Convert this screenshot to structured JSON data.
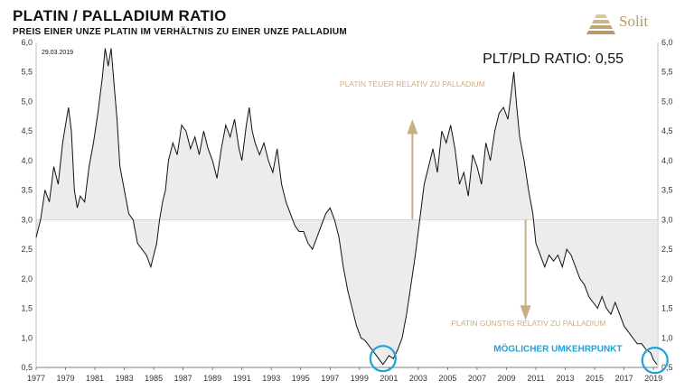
{
  "header": {
    "title": "PLATIN / PALLADIUM RATIO",
    "subtitle": "PREIS EINER UNZE PLATIN IM VERHÄLTNIS ZU EINER UNZE PALLADIUM",
    "brand": "Solit",
    "brand_color": "#b59a6a"
  },
  "chart_data": {
    "type": "line",
    "date_label": "29.03.2019",
    "ratio_label": "PLT/PLD RATIO: 0,55",
    "ylim": [
      0.5,
      6.0
    ],
    "xlim": [
      1977,
      2019.3
    ],
    "reference_level": 3.0,
    "y_ticks": [
      "0,5",
      "1,0",
      "1,5",
      "2,0",
      "2,5",
      "3,0",
      "3,5",
      "4,0",
      "4,5",
      "5,0",
      "5,5",
      "6,0"
    ],
    "x_ticks": [
      "1977",
      "1979",
      "1981",
      "1983",
      "1985",
      "1987",
      "1989",
      "1991",
      "1993",
      "1995",
      "1997",
      "1999",
      "2001",
      "2003",
      "2005",
      "2007",
      "2009",
      "2011",
      "2013",
      "2015",
      "2017",
      "2019"
    ],
    "series": [
      {
        "line_color": "#111111",
        "fill_color": "#ececec",
        "points": [
          [
            1977.0,
            2.7
          ],
          [
            1977.3,
            3.0
          ],
          [
            1977.6,
            3.5
          ],
          [
            1977.9,
            3.3
          ],
          [
            1978.2,
            3.9
          ],
          [
            1978.5,
            3.6
          ],
          [
            1978.8,
            4.3
          ],
          [
            1979.0,
            4.6
          ],
          [
            1979.2,
            4.9
          ],
          [
            1979.4,
            4.5
          ],
          [
            1979.6,
            3.5
          ],
          [
            1979.8,
            3.2
          ],
          [
            1980.0,
            3.4
          ],
          [
            1980.3,
            3.3
          ],
          [
            1980.6,
            3.9
          ],
          [
            1980.9,
            4.3
          ],
          [
            1981.2,
            4.8
          ],
          [
            1981.5,
            5.4
          ],
          [
            1981.7,
            5.9
          ],
          [
            1981.9,
            5.6
          ],
          [
            1982.1,
            5.9
          ],
          [
            1982.3,
            5.3
          ],
          [
            1982.5,
            4.7
          ],
          [
            1982.7,
            3.9
          ],
          [
            1983.0,
            3.5
          ],
          [
            1983.3,
            3.1
          ],
          [
            1983.6,
            3.0
          ],
          [
            1983.9,
            2.6
          ],
          [
            1984.2,
            2.5
          ],
          [
            1984.5,
            2.4
          ],
          [
            1984.8,
            2.2
          ],
          [
            1985.0,
            2.4
          ],
          [
            1985.2,
            2.6
          ],
          [
            1985.4,
            3.0
          ],
          [
            1985.6,
            3.3
          ],
          [
            1985.8,
            3.5
          ],
          [
            1986.0,
            4.0
          ],
          [
            1986.3,
            4.3
          ],
          [
            1986.6,
            4.1
          ],
          [
            1986.9,
            4.6
          ],
          [
            1987.2,
            4.5
          ],
          [
            1987.5,
            4.2
          ],
          [
            1987.8,
            4.4
          ],
          [
            1988.1,
            4.1
          ],
          [
            1988.4,
            4.5
          ],
          [
            1988.7,
            4.2
          ],
          [
            1989.0,
            4.0
          ],
          [
            1989.3,
            3.7
          ],
          [
            1989.6,
            4.2
          ],
          [
            1989.9,
            4.6
          ],
          [
            1990.2,
            4.4
          ],
          [
            1990.5,
            4.7
          ],
          [
            1990.8,
            4.2
          ],
          [
            1991.0,
            4.0
          ],
          [
            1991.3,
            4.6
          ],
          [
            1991.5,
            4.9
          ],
          [
            1991.7,
            4.5
          ],
          [
            1991.9,
            4.3
          ],
          [
            1992.2,
            4.1
          ],
          [
            1992.5,
            4.3
          ],
          [
            1992.8,
            4.0
          ],
          [
            1993.1,
            3.8
          ],
          [
            1993.4,
            4.2
          ],
          [
            1993.7,
            3.6
          ],
          [
            1994.0,
            3.3
          ],
          [
            1994.3,
            3.1
          ],
          [
            1994.6,
            2.9
          ],
          [
            1994.9,
            2.8
          ],
          [
            1995.2,
            2.8
          ],
          [
            1995.5,
            2.6
          ],
          [
            1995.8,
            2.5
          ],
          [
            1996.1,
            2.7
          ],
          [
            1996.4,
            2.9
          ],
          [
            1996.7,
            3.1
          ],
          [
            1997.0,
            3.2
          ],
          [
            1997.3,
            3.0
          ],
          [
            1997.6,
            2.7
          ],
          [
            1997.9,
            2.2
          ],
          [
            1998.2,
            1.8
          ],
          [
            1998.5,
            1.5
          ],
          [
            1998.8,
            1.2
          ],
          [
            1999.1,
            1.0
          ],
          [
            1999.4,
            0.95
          ],
          [
            1999.7,
            0.85
          ],
          [
            2000.0,
            0.75
          ],
          [
            2000.3,
            0.65
          ],
          [
            2000.6,
            0.55
          ],
          [
            2000.8,
            0.62
          ],
          [
            2001.0,
            0.7
          ],
          [
            2001.3,
            0.65
          ],
          [
            2001.6,
            0.8
          ],
          [
            2001.9,
            1.0
          ],
          [
            2002.2,
            1.4
          ],
          [
            2002.5,
            1.9
          ],
          [
            2002.8,
            2.4
          ],
          [
            2003.1,
            3.0
          ],
          [
            2003.4,
            3.6
          ],
          [
            2003.7,
            3.9
          ],
          [
            2004.0,
            4.2
          ],
          [
            2004.3,
            3.8
          ],
          [
            2004.6,
            4.5
          ],
          [
            2004.9,
            4.3
          ],
          [
            2005.2,
            4.6
          ],
          [
            2005.5,
            4.2
          ],
          [
            2005.8,
            3.6
          ],
          [
            2006.1,
            3.8
          ],
          [
            2006.4,
            3.4
          ],
          [
            2006.7,
            4.1
          ],
          [
            2007.0,
            3.9
          ],
          [
            2007.3,
            3.6
          ],
          [
            2007.6,
            4.3
          ],
          [
            2007.9,
            4.0
          ],
          [
            2008.2,
            4.5
          ],
          [
            2008.5,
            4.8
          ],
          [
            2008.8,
            4.9
          ],
          [
            2009.1,
            4.7
          ],
          [
            2009.3,
            5.1
          ],
          [
            2009.5,
            5.5
          ],
          [
            2009.7,
            4.9
          ],
          [
            2009.9,
            4.4
          ],
          [
            2010.2,
            4.0
          ],
          [
            2010.5,
            3.5
          ],
          [
            2010.8,
            3.1
          ],
          [
            2011.0,
            2.6
          ],
          [
            2011.3,
            2.4
          ],
          [
            2011.6,
            2.2
          ],
          [
            2011.9,
            2.4
          ],
          [
            2012.2,
            2.3
          ],
          [
            2012.5,
            2.4
          ],
          [
            2012.8,
            2.2
          ],
          [
            2013.1,
            2.5
          ],
          [
            2013.4,
            2.4
          ],
          [
            2013.7,
            2.2
          ],
          [
            2014.0,
            2.0
          ],
          [
            2014.3,
            1.9
          ],
          [
            2014.6,
            1.7
          ],
          [
            2014.9,
            1.6
          ],
          [
            2015.2,
            1.5
          ],
          [
            2015.5,
            1.7
          ],
          [
            2015.8,
            1.5
          ],
          [
            2016.1,
            1.4
          ],
          [
            2016.4,
            1.6
          ],
          [
            2016.7,
            1.4
          ],
          [
            2017.0,
            1.2
          ],
          [
            2017.3,
            1.1
          ],
          [
            2017.6,
            1.0
          ],
          [
            2017.9,
            0.9
          ],
          [
            2018.2,
            0.9
          ],
          [
            2018.5,
            0.8
          ],
          [
            2018.8,
            0.75
          ],
          [
            2019.0,
            0.63
          ],
          [
            2019.24,
            0.55
          ]
        ]
      }
    ],
    "annotations": [
      {
        "text": "PLATIN TEUER RELATIV ZU PALLADIUM",
        "color": "#c8ae82",
        "arrow": "up"
      },
      {
        "text": "PLATIN GÜNSTIG RELATIV ZU PALLADIUM",
        "color": "#c8ae82",
        "arrow": "down"
      },
      {
        "text": "MÖGLICHER UMKEHRPUNKT",
        "color": "#1ea2dc"
      }
    ],
    "circle_color": "#1ea2dc",
    "arrow_color": "#c8ae82"
  }
}
